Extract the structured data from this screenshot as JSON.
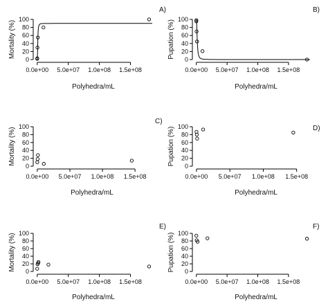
{
  "chart_data": [
    {
      "type": "scatter",
      "panel_label": "A)",
      "xlabel": "Polyhedra/mL",
      "ylabel": "Mortality (%)",
      "xlim": [
        -2000000,
        185000000
      ],
      "ylim": [
        0,
        100
      ],
      "xticks": [
        "0.0e+00",
        "5.0e+07",
        "1.0e+08",
        "1.5e+08"
      ],
      "yticks": [
        "0",
        "20",
        "40",
        "60",
        "80",
        "100"
      ],
      "points": [
        {
          "x": 0,
          "y": 2
        },
        {
          "x": 0,
          "y": 3
        },
        {
          "x": 300000,
          "y": 30
        },
        {
          "x": 1000000,
          "y": 55
        },
        {
          "x": 10000000,
          "y": 80
        },
        {
          "x": 180000000,
          "y": 100
        }
      ],
      "fit_curve": {
        "type": "logistic",
        "lower": 0,
        "upper": 90,
        "ec50": 900000,
        "slope": 2.5
      }
    },
    {
      "type": "scatter",
      "panel_label": "B)",
      "xlabel": "Polyhedra/mL",
      "ylabel": "Pupation (%)",
      "xlim": [
        -2000000,
        185000000
      ],
      "ylim": [
        0,
        100
      ],
      "xticks": [
        "0.0e+00",
        "5.0e+07",
        "1.0e+08",
        "1.5e+08"
      ],
      "yticks": [
        "0",
        "20",
        "40",
        "60",
        "80",
        "100"
      ],
      "points": [
        {
          "x": 0,
          "y": 98
        },
        {
          "x": 0,
          "y": 95
        },
        {
          "x": 300000,
          "y": 70
        },
        {
          "x": 1000000,
          "y": 45
        },
        {
          "x": 10000000,
          "y": 21
        },
        {
          "x": 180000000,
          "y": 0
        }
      ],
      "fit_curve": {
        "type": "logistic-decreasing",
        "lower": 0,
        "upper": 100,
        "ec50": 1400000,
        "slope": 2.2
      }
    },
    {
      "type": "scatter",
      "panel_label": "C)",
      "xlabel": "Polyhedra/mL",
      "ylabel": "Mortality (%)",
      "xlim": [
        -2000000,
        170000000
      ],
      "ylim": [
        0,
        100
      ],
      "xticks": [
        "0.0e+00",
        "5.0e+07",
        "1.0e+08",
        "1.5e+08"
      ],
      "yticks": [
        "0",
        "20",
        "40",
        "60",
        "80",
        "100"
      ],
      "points": [
        {
          "x": 0,
          "y": 10
        },
        {
          "x": 500000,
          "y": 18
        },
        {
          "x": 1000000,
          "y": 28
        },
        {
          "x": 10000000,
          "y": 6
        },
        {
          "x": 145000000,
          "y": 14
        }
      ]
    },
    {
      "type": "scatter",
      "panel_label": "D)",
      "xlabel": "Polyhedra/mL",
      "ylabel": "Pupation (%)",
      "xlim": [
        -2000000,
        170000000
      ],
      "ylim": [
        0,
        100
      ],
      "xticks": [
        "0.0e+00",
        "5.0e+07",
        "1.0e+08",
        "1.5e+08"
      ],
      "yticks": [
        "0",
        "20",
        "40",
        "60",
        "80",
        "100"
      ],
      "points": [
        {
          "x": 0,
          "y": 87
        },
        {
          "x": 500000,
          "y": 80
        },
        {
          "x": 1000000,
          "y": 70
        },
        {
          "x": 10000000,
          "y": 93
        },
        {
          "x": 145000000,
          "y": 85
        }
      ]
    },
    {
      "type": "scatter",
      "panel_label": "E)",
      "xlabel": "Polyhedra/mL",
      "ylabel": "Mortality (%)",
      "xlim": [
        -2000000,
        185000000
      ],
      "ylim": [
        0,
        100
      ],
      "xticks": [
        "0.0e+00",
        "5.0e+07",
        "1.0e+08",
        "1.5e+08"
      ],
      "yticks": [
        "0",
        "20",
        "40",
        "60",
        "80",
        "100"
      ],
      "points": [
        {
          "x": 0,
          "y": 7
        },
        {
          "x": 500000,
          "y": 19
        },
        {
          "x": 1500000,
          "y": 22
        },
        {
          "x": 2000000,
          "y": 25
        },
        {
          "x": 18000000,
          "y": 18
        },
        {
          "x": 180000000,
          "y": 13
        }
      ]
    },
    {
      "type": "scatter",
      "panel_label": "F)",
      "xlabel": "Polyhedra/mL",
      "ylabel": "Pupation (%)",
      "xlim": [
        -2000000,
        185000000
      ],
      "ylim": [
        0,
        100
      ],
      "xticks": [
        "0.0e+00",
        "5.0e+07",
        "1.0e+08",
        "1.5e+08"
      ],
      "yticks": [
        "0",
        "20",
        "40",
        "60",
        "80",
        "100"
      ],
      "points": [
        {
          "x": 0,
          "y": 94
        },
        {
          "x": 500000,
          "y": 82
        },
        {
          "x": 2000000,
          "y": 78
        },
        {
          "x": 18000000,
          "y": 87
        },
        {
          "x": 180000000,
          "y": 86
        }
      ]
    }
  ]
}
